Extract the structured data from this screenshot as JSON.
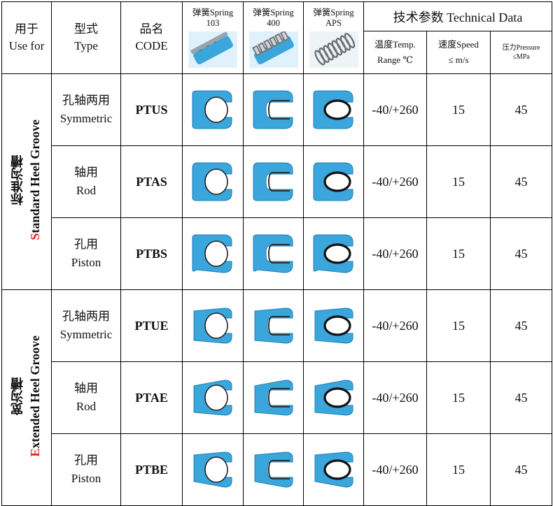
{
  "header": {
    "use_for_cn": "用于",
    "use_for_en": "Use for",
    "type_cn": "型式",
    "type_en": "Type",
    "code_cn": "品名",
    "code_en": "CODE",
    "springs": [
      {
        "line1": "弹簧Spring",
        "line2": "103",
        "icon": "spring-103-icon"
      },
      {
        "line1": "弹簧Spring",
        "line2": "400",
        "icon": "spring-400-icon"
      },
      {
        "line1": "弹簧Spring",
        "line2": "APS",
        "icon": "spring-aps-icon"
      }
    ],
    "technical_data": "技术参数 Technical Data",
    "temp_line1": "温度Temp.",
    "temp_line2": "Range ℃",
    "speed_line1": "速度Speed",
    "speed_line2": "≤ m/s",
    "pressure_line1": "压力Pressure",
    "pressure_line2": "≤MPa"
  },
  "groups": [
    {
      "label_cn": "标准沟槽",
      "label_cap": "S",
      "label_rest": "tandard Heel Groove",
      "rows": [
        {
          "type_cn": "孔轴两用",
          "type_en": "Symmetric",
          "code": "PTUS",
          "temp": "-40/+260",
          "speed": "15",
          "pressure": "45"
        },
        {
          "type_cn": "轴用",
          "type_en": "Rod",
          "code": "PTAS",
          "temp": "-40/+260",
          "speed": "15",
          "pressure": "45"
        },
        {
          "type_cn": "孔用",
          "type_en": "Piston",
          "code": "PTBS",
          "temp": "-40/+260",
          "speed": "15",
          "pressure": "45"
        }
      ]
    },
    {
      "label_cn": "宽沟槽",
      "label_cap": "E",
      "label_rest": "xtended Heel Groove",
      "rows": [
        {
          "type_cn": "孔轴两用",
          "type_en": "Symmetric",
          "code": "PTUE",
          "temp": "-40/+260",
          "speed": "15",
          "pressure": "45"
        },
        {
          "type_cn": "轴用",
          "type_en": "Rod",
          "code": "PTAE",
          "temp": "-40/+260",
          "speed": "15",
          "pressure": "45"
        },
        {
          "type_cn": "孔用",
          "type_en": "Piston",
          "code": "PTBE",
          "temp": "-40/+260",
          "speed": "15",
          "pressure": "45"
        }
      ]
    }
  ],
  "colors": {
    "seal_blue": "#3aa6dc",
    "seal_edge": "#1f7fb5",
    "highlight_red": "#e2231a",
    "spring_ring": "#111111"
  }
}
